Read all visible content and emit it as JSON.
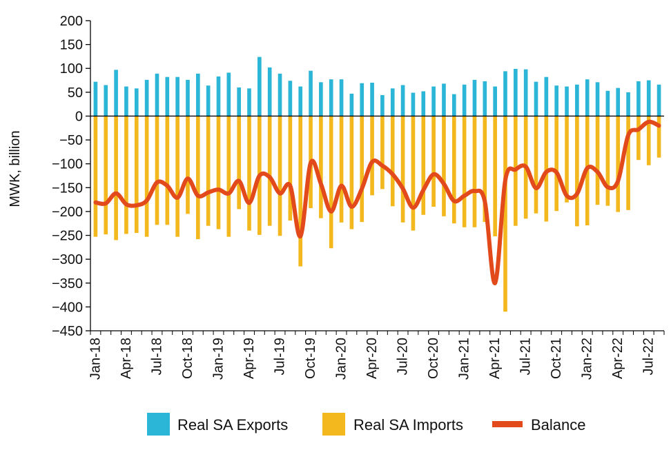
{
  "colors": {
    "exports": "#2bb5d6",
    "imports": "#f2b81e",
    "balance": "#e24a1b",
    "axis": "#000000"
  },
  "chart_data": {
    "type": "bar",
    "ylabel": "MWK, billion",
    "ylim": [
      -450,
      200
    ],
    "yticks": [
      200,
      150,
      100,
      50,
      0,
      -50,
      -100,
      -150,
      -200,
      -250,
      -300,
      -350,
      -400,
      -450
    ],
    "ytick_labels": [
      "200",
      "150",
      "100",
      "50",
      "0",
      "−50",
      "−100",
      "−150",
      "−200",
      "−250",
      "−300",
      "−350",
      "−400",
      "−450"
    ],
    "categories": [
      "Jan-18",
      "Feb-18",
      "Mar-18",
      "Apr-18",
      "May-18",
      "Jun-18",
      "Jul-18",
      "Aug-18",
      "Sep-18",
      "Oct-18",
      "Nov-18",
      "Dec-18",
      "Jan-19",
      "Feb-19",
      "Mar-19",
      "Apr-19",
      "May-19",
      "Jun-19",
      "Jul-19",
      "Aug-19",
      "Sep-19",
      "Oct-19",
      "Nov-19",
      "Dec-19",
      "Jan-20",
      "Feb-20",
      "Mar-20",
      "Apr-20",
      "May-20",
      "Jun-20",
      "Jul-20",
      "Aug-20",
      "Sep-20",
      "Oct-20",
      "Nov-20",
      "Dec-20",
      "Jan-21",
      "Feb-21",
      "Mar-21",
      "Apr-21",
      "May-21",
      "Jun-21",
      "Jul-21",
      "Aug-21",
      "Sep-21",
      "Oct-21",
      "Nov-21",
      "Dec-21",
      "Jan-22",
      "Feb-22",
      "Mar-22",
      "Apr-22",
      "May-22",
      "Jun-22",
      "Jul-22",
      "Aug-22"
    ],
    "xtick_labels": [
      "Jan-18",
      "Apr-18",
      "Jul-18",
      "Oct-18",
      "Jan-19",
      "Apr-19",
      "Jul-19",
      "Oct-19",
      "Jan-20",
      "Apr-20",
      "Jul-20",
      "Oct-20",
      "Jan-21",
      "Apr-21",
      "Jul-21",
      "Oct-21",
      "Jan-22",
      "Apr-22",
      "Jul-22"
    ],
    "legend_position": "bottom",
    "series": [
      {
        "name": "Real SA Exports",
        "kind": "bar",
        "values": [
          72,
          65,
          97,
          62,
          58,
          76,
          89,
          82,
          82,
          76,
          89,
          64,
          83,
          91,
          60,
          58,
          124,
          102,
          89,
          74,
          62,
          95,
          71,
          77,
          77,
          47,
          69,
          70,
          44,
          58,
          65,
          49,
          52,
          62,
          68,
          46,
          66,
          76,
          73,
          62,
          94,
          99,
          98,
          72,
          82,
          64,
          62,
          66,
          77,
          71,
          53,
          59,
          50,
          73,
          75,
          66
        ]
      },
      {
        "name": "Real SA Imports",
        "kind": "bar",
        "values": [
          -253,
          -248,
          -260,
          -247,
          -245,
          -253,
          -228,
          -228,
          -253,
          -205,
          -258,
          -230,
          -237,
          -253,
          -195,
          -240,
          -249,
          -230,
          -251,
          -219,
          -315,
          -193,
          -214,
          -277,
          -223,
          -237,
          -222,
          -166,
          -153,
          -189,
          -223,
          -240,
          -207,
          -190,
          -210,
          -225,
          -233,
          -233,
          -222,
          -252,
          -410,
          -230,
          -215,
          -204,
          -221,
          -199,
          -181,
          -231,
          -229,
          -186,
          -188,
          -201,
          -197,
          -92,
          -103,
          -87
        ]
      },
      {
        "name": "Balance",
        "kind": "line",
        "values": [
          -181,
          -183,
          -162,
          -185,
          -187,
          -177,
          -139,
          -146,
          -171,
          -131,
          -167,
          -160,
          -154,
          -162,
          -136,
          -182,
          -125,
          -128,
          -162,
          -146,
          -252,
          -98,
          -142,
          -200,
          -146,
          -190,
          -152,
          -96,
          -104,
          -122,
          -152,
          -192,
          -155,
          -122,
          -142,
          -178,
          -167,
          -157,
          -179,
          -350,
          -134,
          -112,
          -106,
          -151,
          -117,
          -118,
          -167,
          -163,
          -109,
          -117,
          -149,
          -136,
          -40,
          -28,
          -12,
          -20
        ]
      }
    ]
  }
}
